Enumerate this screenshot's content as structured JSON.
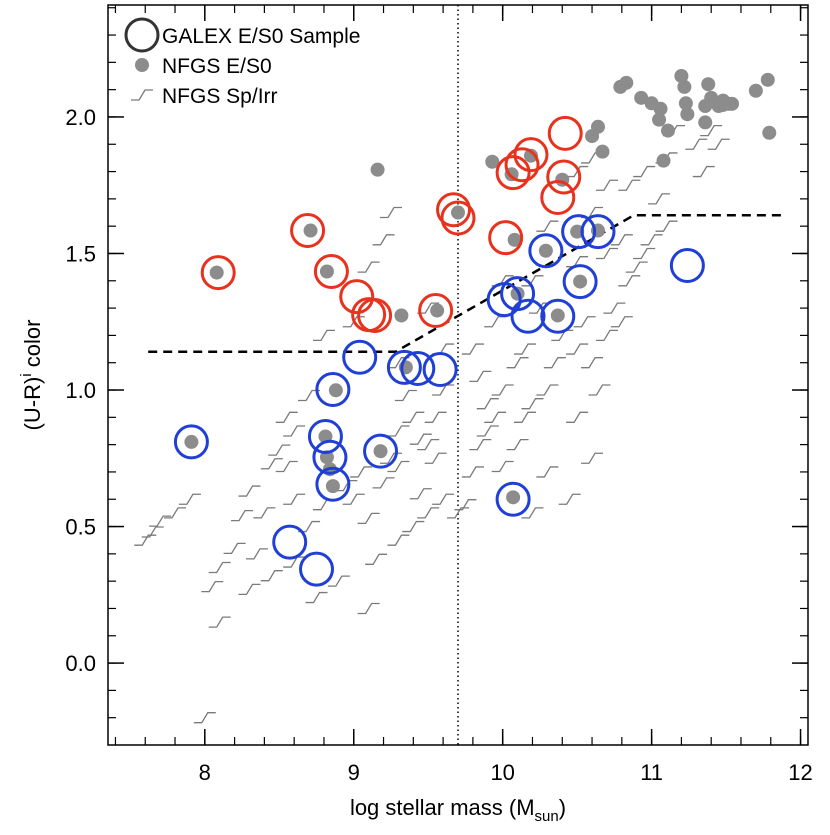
{
  "chart_data": {
    "type": "scatter",
    "xlabel": {
      "text": "log stellar mass (M",
      "sub": "sun",
      "after": ")"
    },
    "ylabel": {
      "text": "(U-R)",
      "sup": "i",
      "after": " color"
    },
    "xlim": [
      7.35,
      12.05
    ],
    "ylim": [
      -0.3,
      2.41
    ],
    "xticks": [
      8,
      9,
      10,
      11,
      12
    ],
    "yticks": [
      {
        "value": 0,
        "label": "0.0"
      },
      0.5,
      {
        "value": 1,
        "label": "1.0"
      },
      1.5,
      {
        "value": 2,
        "label": "2.0"
      }
    ],
    "minor_ticks": true,
    "legend": "upper left",
    "vline": {
      "x": 9.7,
      "style": "dotted",
      "color": "#000000"
    },
    "divider": {
      "style": "dashed",
      "color": "#000000",
      "x": [
        7.62,
        9.28,
        10.88,
        11.89
      ],
      "y": [
        1.14,
        1.14,
        1.64,
        1.64
      ]
    },
    "series": [
      {
        "name": "NFGS Sp/Irr",
        "marker": "step",
        "color": "#7a7a7a",
        "x": [
          8.0,
          7.6,
          7.65,
          7.8,
          7.9,
          7.7,
          8.1,
          8.2,
          8.25,
          8.3,
          8.05,
          8.1,
          8.3,
          8.45,
          8.35,
          8.4,
          8.45,
          8.5,
          8.55,
          8.6,
          8.7,
          8.6,
          8.55,
          8.7,
          8.6,
          8.75,
          8.9,
          8.8,
          8.95,
          9.0,
          9.05,
          9.1,
          9.15,
          9.1,
          9.2,
          9.25,
          9.3,
          9.3,
          9.35,
          9.4,
          9.45,
          9.5,
          9.55,
          9.6,
          9.55,
          9.45,
          9.5,
          9.4,
          9.3,
          9.6,
          9.7,
          9.75,
          9.8,
          9.85,
          9.9,
          9.95,
          9.9,
          10.0,
          10.0,
          10.1,
          10.15,
          10.2,
          10.1,
          10.15,
          10.3,
          10.35,
          10.4,
          10.5,
          10.55,
          10.6,
          10.65,
          10.7,
          10.75,
          10.8,
          10.85,
          10.9,
          10.95,
          10.7,
          10.8,
          11.0,
          11.1,
          11.05,
          10.95,
          10.85,
          11.1,
          11.15,
          11.3,
          11.4,
          10.6,
          10.7,
          10.5,
          10.6,
          10.5,
          10.3,
          10.2,
          10.0,
          9.85,
          9.95,
          9.8,
          9.5,
          9.2,
          9.1,
          9.0,
          8.8,
          9.3,
          10.3,
          10.5,
          10.6,
          10.45,
          10.2,
          10.25,
          9.6,
          11.35,
          11.45,
          9.25
        ],
        "values": [
          -0.2,
          0.45,
          0.48,
          0.55,
          0.6,
          0.52,
          0.35,
          0.42,
          0.54,
          0.63,
          0.28,
          0.15,
          0.27,
          0.32,
          0.4,
          0.55,
          0.73,
          0.78,
          0.72,
          0.6,
          0.5,
          0.85,
          0.9,
          0.98,
          0.37,
          0.24,
          0.3,
          0.58,
          0.65,
          0.6,
          0.7,
          0.53,
          0.38,
          0.2,
          0.66,
          0.75,
          0.72,
          0.85,
          0.98,
          0.9,
          0.82,
          0.8,
          0.9,
          1.0,
          0.75,
          0.62,
          0.55,
          0.5,
          0.45,
          0.6,
          0.55,
          0.58,
          0.7,
          0.8,
          0.85,
          0.9,
          0.95,
          1.0,
          0.72,
          0.8,
          0.9,
          0.95,
          1.1,
          1.15,
          1.0,
          1.1,
          1.2,
          1.15,
          1.25,
          1.1,
          1.0,
          1.2,
          1.3,
          1.25,
          1.4,
          1.45,
          1.5,
          1.5,
          1.55,
          1.55,
          1.6,
          1.7,
          1.8,
          1.75,
          1.85,
          1.95,
          1.9,
          1.95,
          1.65,
          1.75,
          1.8,
          1.85,
          1.47,
          1.6,
          1.4,
          1.4,
          1.05,
          1.25,
          1.15,
          1.3,
          1.55,
          1.45,
          1.25,
          1.2,
          1.1,
          0.7,
          0.9,
          0.75,
          0.6,
          0.55,
          1.3,
          1.15,
          1.8,
          1.9,
          1.65
        ]
      },
      {
        "name": "NFGS E/S0",
        "marker": "dot",
        "color": "#8c8c8c",
        "x": [
          7.91,
          8.08,
          8.71,
          8.81,
          8.82,
          8.84,
          8.86,
          8.88,
          8.82,
          9.16,
          9.18,
          9.32,
          9.35,
          9.56,
          9.7,
          9.93,
          10.07,
          10.06,
          10.19,
          10.08,
          10.1,
          10.29,
          10.37,
          10.4,
          10.52,
          10.5,
          10.64,
          10.6,
          10.64,
          10.67,
          10.79,
          10.83,
          10.93,
          11.0,
          11.06,
          11.05,
          11.11,
          11.08,
          11.2,
          11.22,
          11.38,
          11.23,
          11.36,
          11.36,
          11.4,
          11.48,
          11.48,
          11.52,
          11.54,
          11.7,
          11.78,
          11.79,
          11.24,
          11.45
        ],
        "values": [
          0.81,
          1.43,
          1.584,
          0.83,
          0.754,
          0.71,
          0.648,
          0.999,
          1.434,
          1.807,
          0.776,
          1.273,
          1.083,
          1.291,
          1.65,
          1.836,
          0.607,
          1.79,
          1.858,
          1.55,
          1.353,
          1.51,
          1.273,
          1.77,
          1.397,
          1.58,
          1.584,
          1.93,
          1.964,
          1.873,
          2.11,
          2.125,
          2.07,
          2.05,
          2.03,
          1.99,
          1.95,
          1.84,
          2.15,
          2.11,
          2.12,
          2.05,
          1.98,
          2.04,
          2.07,
          2.06,
          2.044,
          2.048,
          2.048,
          2.096,
          2.136,
          1.942,
          2.01,
          2.04
        ]
      },
      {
        "name": "GALEX E/S0 Sample",
        "marker": "open-circle",
        "color": "#333333",
        "groups": [
          {
            "color": "#e8321e",
            "x": [
              8.09,
              8.69,
              8.85,
              9.02,
              9.1,
              9.14,
              9.55,
              9.67,
              9.7,
              10.02,
              10.07,
              10.13,
              10.19,
              10.42,
              10.41,
              10.37
            ],
            "values": [
              1.43,
              1.584,
              1.434,
              1.342,
              1.276,
              1.273,
              1.291,
              1.66,
              1.63,
              1.558,
              1.796,
              1.825,
              1.862,
              1.94,
              1.78,
              1.705
            ]
          },
          {
            "color": "#1f3fd6",
            "x": [
              7.91,
              8.57,
              8.75,
              8.86,
              8.84,
              8.81,
              8.86,
              9.18,
              9.04,
              9.34,
              9.43,
              9.58,
              10.01,
              10.1,
              10.17,
              10.37,
              10.29,
              10.51,
              10.64,
              10.52,
              11.24,
              10.07
            ],
            "values": [
              0.81,
              0.443,
              0.344,
              0.655,
              0.754,
              0.83,
              1.002,
              0.776,
              1.12,
              1.083,
              1.079,
              1.075,
              1.331,
              1.353,
              1.27,
              1.27,
              1.51,
              1.58,
              1.58,
              1.397,
              1.456,
              0.6
            ]
          }
        ]
      }
    ]
  }
}
